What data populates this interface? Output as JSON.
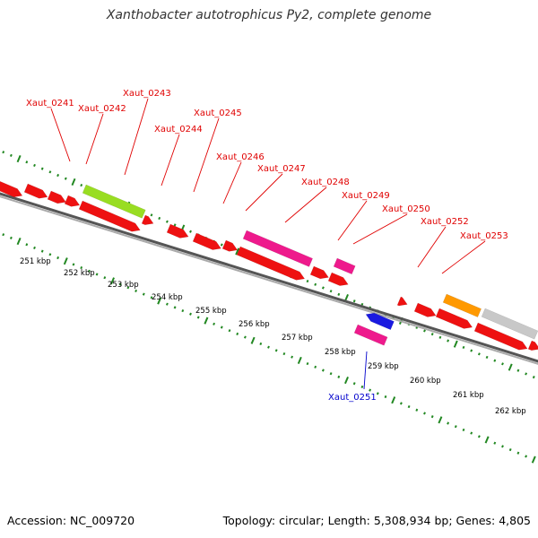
{
  "title": "Xanthobacter autotrophicus Py2, complete genome",
  "footer": {
    "accession": "Accession: NC_009720",
    "summary": "Topology: circular; Length: 5,308,934 bp; Genes: 4,805"
  },
  "colors": {
    "gene_red": "#ee1111",
    "gene_green": "#99dd22",
    "gene_pink": "#ee1a8c",
    "gene_blue": "#1a1ae0",
    "gene_orange": "#ff9900",
    "gene_gray": "#c8c8c8",
    "label_red": "#e00000",
    "label_blue": "#0000cc",
    "ruler_green": "#228822"
  },
  "scale_ticks": [
    "251 kbp",
    "252 kbp",
    "253 kbp",
    "254 kbp",
    "255 kbp",
    "256 kbp",
    "257 kbp",
    "258 kbp",
    "259 kbp",
    "260 kbp",
    "261 kbp",
    "262 kbp"
  ],
  "gene_labels": [
    {
      "name": "Xaut_0241",
      "color": "red"
    },
    {
      "name": "Xaut_0242",
      "color": "red"
    },
    {
      "name": "Xaut_0243",
      "color": "red"
    },
    {
      "name": "Xaut_0244",
      "color": "red"
    },
    {
      "name": "Xaut_0245",
      "color": "red"
    },
    {
      "name": "Xaut_0246",
      "color": "red"
    },
    {
      "name": "Xaut_0247",
      "color": "red"
    },
    {
      "name": "Xaut_0248",
      "color": "red"
    },
    {
      "name": "Xaut_0249",
      "color": "red"
    },
    {
      "name": "Xaut_0250",
      "color": "red"
    },
    {
      "name": "Xaut_0252",
      "color": "red"
    },
    {
      "name": "Xaut_0253",
      "color": "red"
    },
    {
      "name": "Xaut_0251",
      "color": "blue"
    }
  ]
}
